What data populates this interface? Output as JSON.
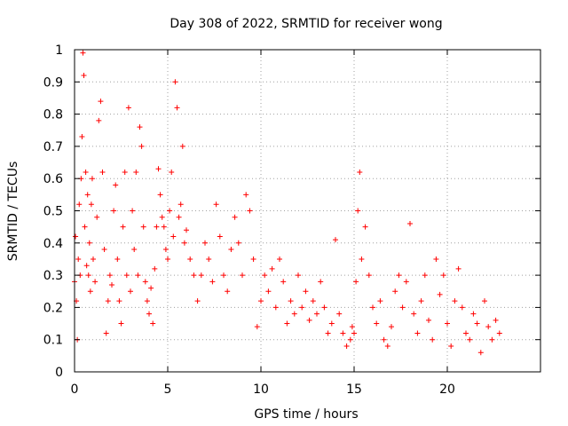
{
  "chart_data": {
    "type": "scatter",
    "title": "Day 308 of 2022, SRMTID for receiver wong",
    "xlabel": "GPS time / hours",
    "ylabel": "SRMTID / TECUs",
    "xlim": [
      0,
      25
    ],
    "ylim": [
      0,
      1
    ],
    "grid": true,
    "marker": "+",
    "color": "#ff0000",
    "x_ticks": [
      0,
      5,
      10,
      15,
      20
    ],
    "x_tick_labels": [
      "0",
      "5",
      "10",
      "15",
      "20"
    ],
    "y_ticks": [
      0,
      0.1,
      0.2,
      0.3,
      0.4,
      0.5,
      0.6,
      0.7,
      0.8,
      0.9,
      1
    ],
    "y_tick_labels": [
      "0",
      "0.1",
      "0.2",
      "0.3",
      "0.4",
      "0.5",
      "0.6",
      "0.7",
      "0.8",
      "0.9",
      "1"
    ],
    "series": [
      {
        "name": "wong",
        "x": [
          0.0,
          0.05,
          0.1,
          0.15,
          0.2,
          0.25,
          0.3,
          0.35,
          0.4,
          0.45,
          0.5,
          0.55,
          0.6,
          0.65,
          0.7,
          0.75,
          0.8,
          0.85,
          0.9,
          0.95,
          1.0,
          1.1,
          1.2,
          1.3,
          1.4,
          1.5,
          1.6,
          1.7,
          1.8,
          1.9,
          2.0,
          2.1,
          2.2,
          2.3,
          2.4,
          2.5,
          2.6,
          2.7,
          2.8,
          2.9,
          3.0,
          3.1,
          3.2,
          3.3,
          3.4,
          3.5,
          3.6,
          3.7,
          3.8,
          3.9,
          4.0,
          4.1,
          4.2,
          4.3,
          4.4,
          4.5,
          4.6,
          4.7,
          4.8,
          4.9,
          5.0,
          5.1,
          5.2,
          5.3,
          5.4,
          5.5,
          5.6,
          5.7,
          5.8,
          5.9,
          6.0,
          6.2,
          6.4,
          6.6,
          6.8,
          7.0,
          7.2,
          7.4,
          7.6,
          7.8,
          8.0,
          8.2,
          8.4,
          8.6,
          8.8,
          9.0,
          9.2,
          9.4,
          9.6,
          9.8,
          10.0,
          10.2,
          10.4,
          10.6,
          10.8,
          11.0,
          11.2,
          11.4,
          11.6,
          11.8,
          12.0,
          12.2,
          12.4,
          12.6,
          12.8,
          13.0,
          13.2,
          13.4,
          13.6,
          13.8,
          14.0,
          14.2,
          14.4,
          14.6,
          14.8,
          14.9,
          15.0,
          15.1,
          15.2,
          15.3,
          15.4,
          15.6,
          15.8,
          16.0,
          16.2,
          16.4,
          16.6,
          16.8,
          17.0,
          17.2,
          17.4,
          17.6,
          17.8,
          18.0,
          18.2,
          18.4,
          18.6,
          18.8,
          19.0,
          19.2,
          19.4,
          19.6,
          19.8,
          20.0,
          20.2,
          20.4,
          20.6,
          20.8,
          21.0,
          21.2,
          21.4,
          21.6,
          21.8,
          22.0,
          22.2,
          22.4,
          22.6,
          22.8
        ],
        "y": [
          0.28,
          0.42,
          0.22,
          0.1,
          0.35,
          0.52,
          0.3,
          0.6,
          0.73,
          0.99,
          0.92,
          0.45,
          0.62,
          0.33,
          0.55,
          0.3,
          0.4,
          0.25,
          0.52,
          0.6,
          0.35,
          0.28,
          0.48,
          0.78,
          0.84,
          0.62,
          0.38,
          0.12,
          0.22,
          0.3,
          0.27,
          0.5,
          0.58,
          0.35,
          0.22,
          0.15,
          0.45,
          0.62,
          0.3,
          0.82,
          0.25,
          0.5,
          0.38,
          0.62,
          0.3,
          0.76,
          0.7,
          0.45,
          0.28,
          0.22,
          0.18,
          0.26,
          0.15,
          0.32,
          0.45,
          0.63,
          0.55,
          0.48,
          0.45,
          0.38,
          0.35,
          0.5,
          0.62,
          0.42,
          0.9,
          0.82,
          0.48,
          0.52,
          0.7,
          0.4,
          0.44,
          0.35,
          0.3,
          0.22,
          0.3,
          0.4,
          0.35,
          0.28,
          0.52,
          0.42,
          0.3,
          0.25,
          0.38,
          0.48,
          0.4,
          0.3,
          0.55,
          0.5,
          0.35,
          0.14,
          0.22,
          0.3,
          0.25,
          0.32,
          0.2,
          0.35,
          0.28,
          0.15,
          0.22,
          0.18,
          0.3,
          0.2,
          0.25,
          0.16,
          0.22,
          0.18,
          0.28,
          0.2,
          0.12,
          0.15,
          0.41,
          0.18,
          0.12,
          0.08,
          0.1,
          0.14,
          0.12,
          0.28,
          0.5,
          0.62,
          0.35,
          0.45,
          0.3,
          0.2,
          0.15,
          0.22,
          0.1,
          0.08,
          0.14,
          0.25,
          0.3,
          0.2,
          0.28,
          0.46,
          0.18,
          0.12,
          0.22,
          0.3,
          0.16,
          0.1,
          0.35,
          0.24,
          0.3,
          0.15,
          0.08,
          0.22,
          0.32,
          0.2,
          0.12,
          0.1,
          0.18,
          0.15,
          0.06,
          0.22,
          0.14,
          0.1,
          0.16,
          0.12
        ]
      }
    ]
  }
}
